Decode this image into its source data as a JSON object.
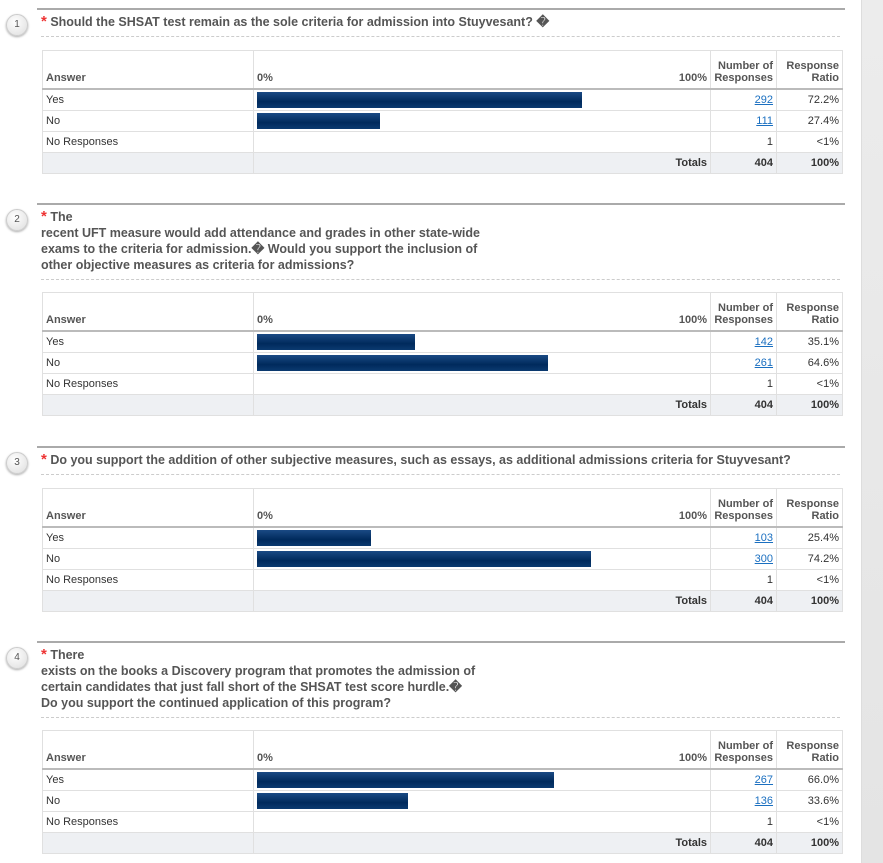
{
  "headers": {
    "answer": "Answer",
    "zero": "0%",
    "hundred": "100%",
    "count": "Number of Responses",
    "ratio": "Response Ratio",
    "totals": "Totals"
  },
  "questions": [
    {
      "number": "1",
      "required": "*",
      "text": "Should the SHSAT test remain as the sole criteria for admission into Stuyvesant? �",
      "rows": [
        {
          "label": "Yes",
          "pct": 72.2,
          "count": "292",
          "ratio": "72.2%",
          "link": true
        },
        {
          "label": "No",
          "pct": 27.4,
          "count": "111",
          "ratio": "27.4%",
          "link": true
        },
        {
          "label": "No Responses",
          "pct": 0,
          "count": "1",
          "ratio": "<1%",
          "link": false
        }
      ],
      "total": "404",
      "total_ratio": "100%"
    },
    {
      "number": "2",
      "required": "*",
      "text": "The\nrecent UFT measure would add attendance and grades in other state-wide\nexams to the criteria for admission.� Would you support the inclusion of\nother objective measures as criteria for admissions?",
      "rows": [
        {
          "label": "Yes",
          "pct": 35.1,
          "count": "142",
          "ratio": "35.1%",
          "link": true
        },
        {
          "label": "No",
          "pct": 64.6,
          "count": "261",
          "ratio": "64.6%",
          "link": true
        },
        {
          "label": "No Responses",
          "pct": 0,
          "count": "1",
          "ratio": "<1%",
          "link": false
        }
      ],
      "total": "404",
      "total_ratio": "100%"
    },
    {
      "number": "3",
      "required": "*",
      "text": "Do you support the addition of other subjective measures, such as essays, as additional admissions criteria for Stuyvesant?",
      "rows": [
        {
          "label": "Yes",
          "pct": 25.4,
          "count": "103",
          "ratio": "25.4%",
          "link": true
        },
        {
          "label": "No",
          "pct": 74.2,
          "count": "300",
          "ratio": "74.2%",
          "link": true
        },
        {
          "label": "No Responses",
          "pct": 0,
          "count": "1",
          "ratio": "<1%",
          "link": false
        }
      ],
      "total": "404",
      "total_ratio": "100%"
    },
    {
      "number": "4",
      "required": "*",
      "text": "There\nexists on the books a Discovery program that promotes the admission of\ncertain candidates that just fall short of the SHSAT test score hurdle.�\nDo you support the continued application of this program?",
      "rows": [
        {
          "label": "Yes",
          "pct": 66.0,
          "count": "267",
          "ratio": "66.0%",
          "link": true
        },
        {
          "label": "No",
          "pct": 33.6,
          "count": "136",
          "ratio": "33.6%",
          "link": true
        },
        {
          "label": "No Responses",
          "pct": 0,
          "count": "1",
          "ratio": "<1%",
          "link": false
        }
      ],
      "total": "404",
      "total_ratio": "100%"
    }
  ]
}
